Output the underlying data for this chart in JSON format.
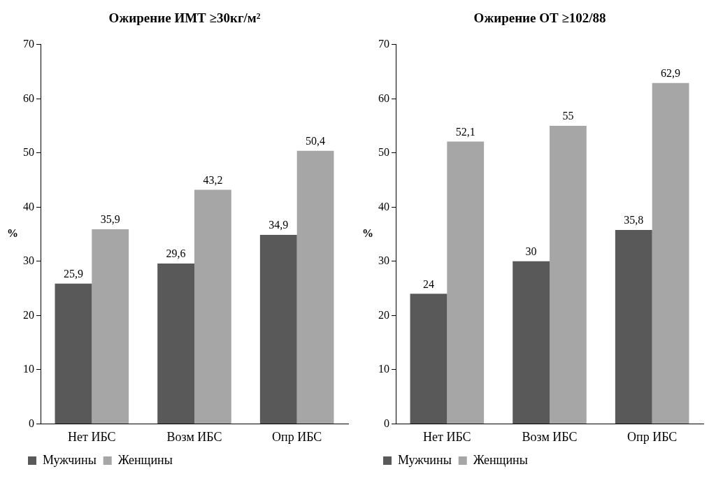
{
  "chart_data": [
    {
      "type": "bar",
      "title": "Ожирение ИМТ ≥30кг/м²",
      "ylabel": "%",
      "categories": [
        "Нет ИБС",
        "Возм ИБС",
        "Опр ИБС"
      ],
      "ylim": [
        0,
        70
      ],
      "yticks": [
        0,
        10,
        20,
        30,
        40,
        50,
        60,
        70
      ],
      "grid": false,
      "legend": "bottom",
      "series": [
        {
          "name": "Мужчины",
          "color": "#595959",
          "values": [
            25.9,
            29.6,
            34.9
          ],
          "value_labels": [
            "25,9",
            "29,6",
            "34,9"
          ]
        },
        {
          "name": "Женщины",
          "color": "#a6a6a6",
          "values": [
            35.9,
            43.2,
            50.4
          ],
          "value_labels": [
            "35,9",
            "43,2",
            "50,4"
          ]
        }
      ]
    },
    {
      "type": "bar",
      "title": "Ожирение ОТ ≥102/88",
      "ylabel": "%",
      "categories": [
        "Нет ИБС",
        "Возм ИБС",
        "Опр ИБС"
      ],
      "ylim": [
        0,
        70
      ],
      "yticks": [
        0,
        10,
        20,
        30,
        40,
        50,
        60,
        70
      ],
      "grid": false,
      "legend": "bottom",
      "series": [
        {
          "name": "Мужчины",
          "color": "#595959",
          "values": [
            24,
            30,
            35.8
          ],
          "value_labels": [
            "24",
            "30",
            "35,8"
          ]
        },
        {
          "name": "Женщины",
          "color": "#a6a6a6",
          "values": [
            52.1,
            55,
            62.9
          ],
          "value_labels": [
            "52,1",
            "55",
            "62,9"
          ]
        }
      ]
    }
  ]
}
